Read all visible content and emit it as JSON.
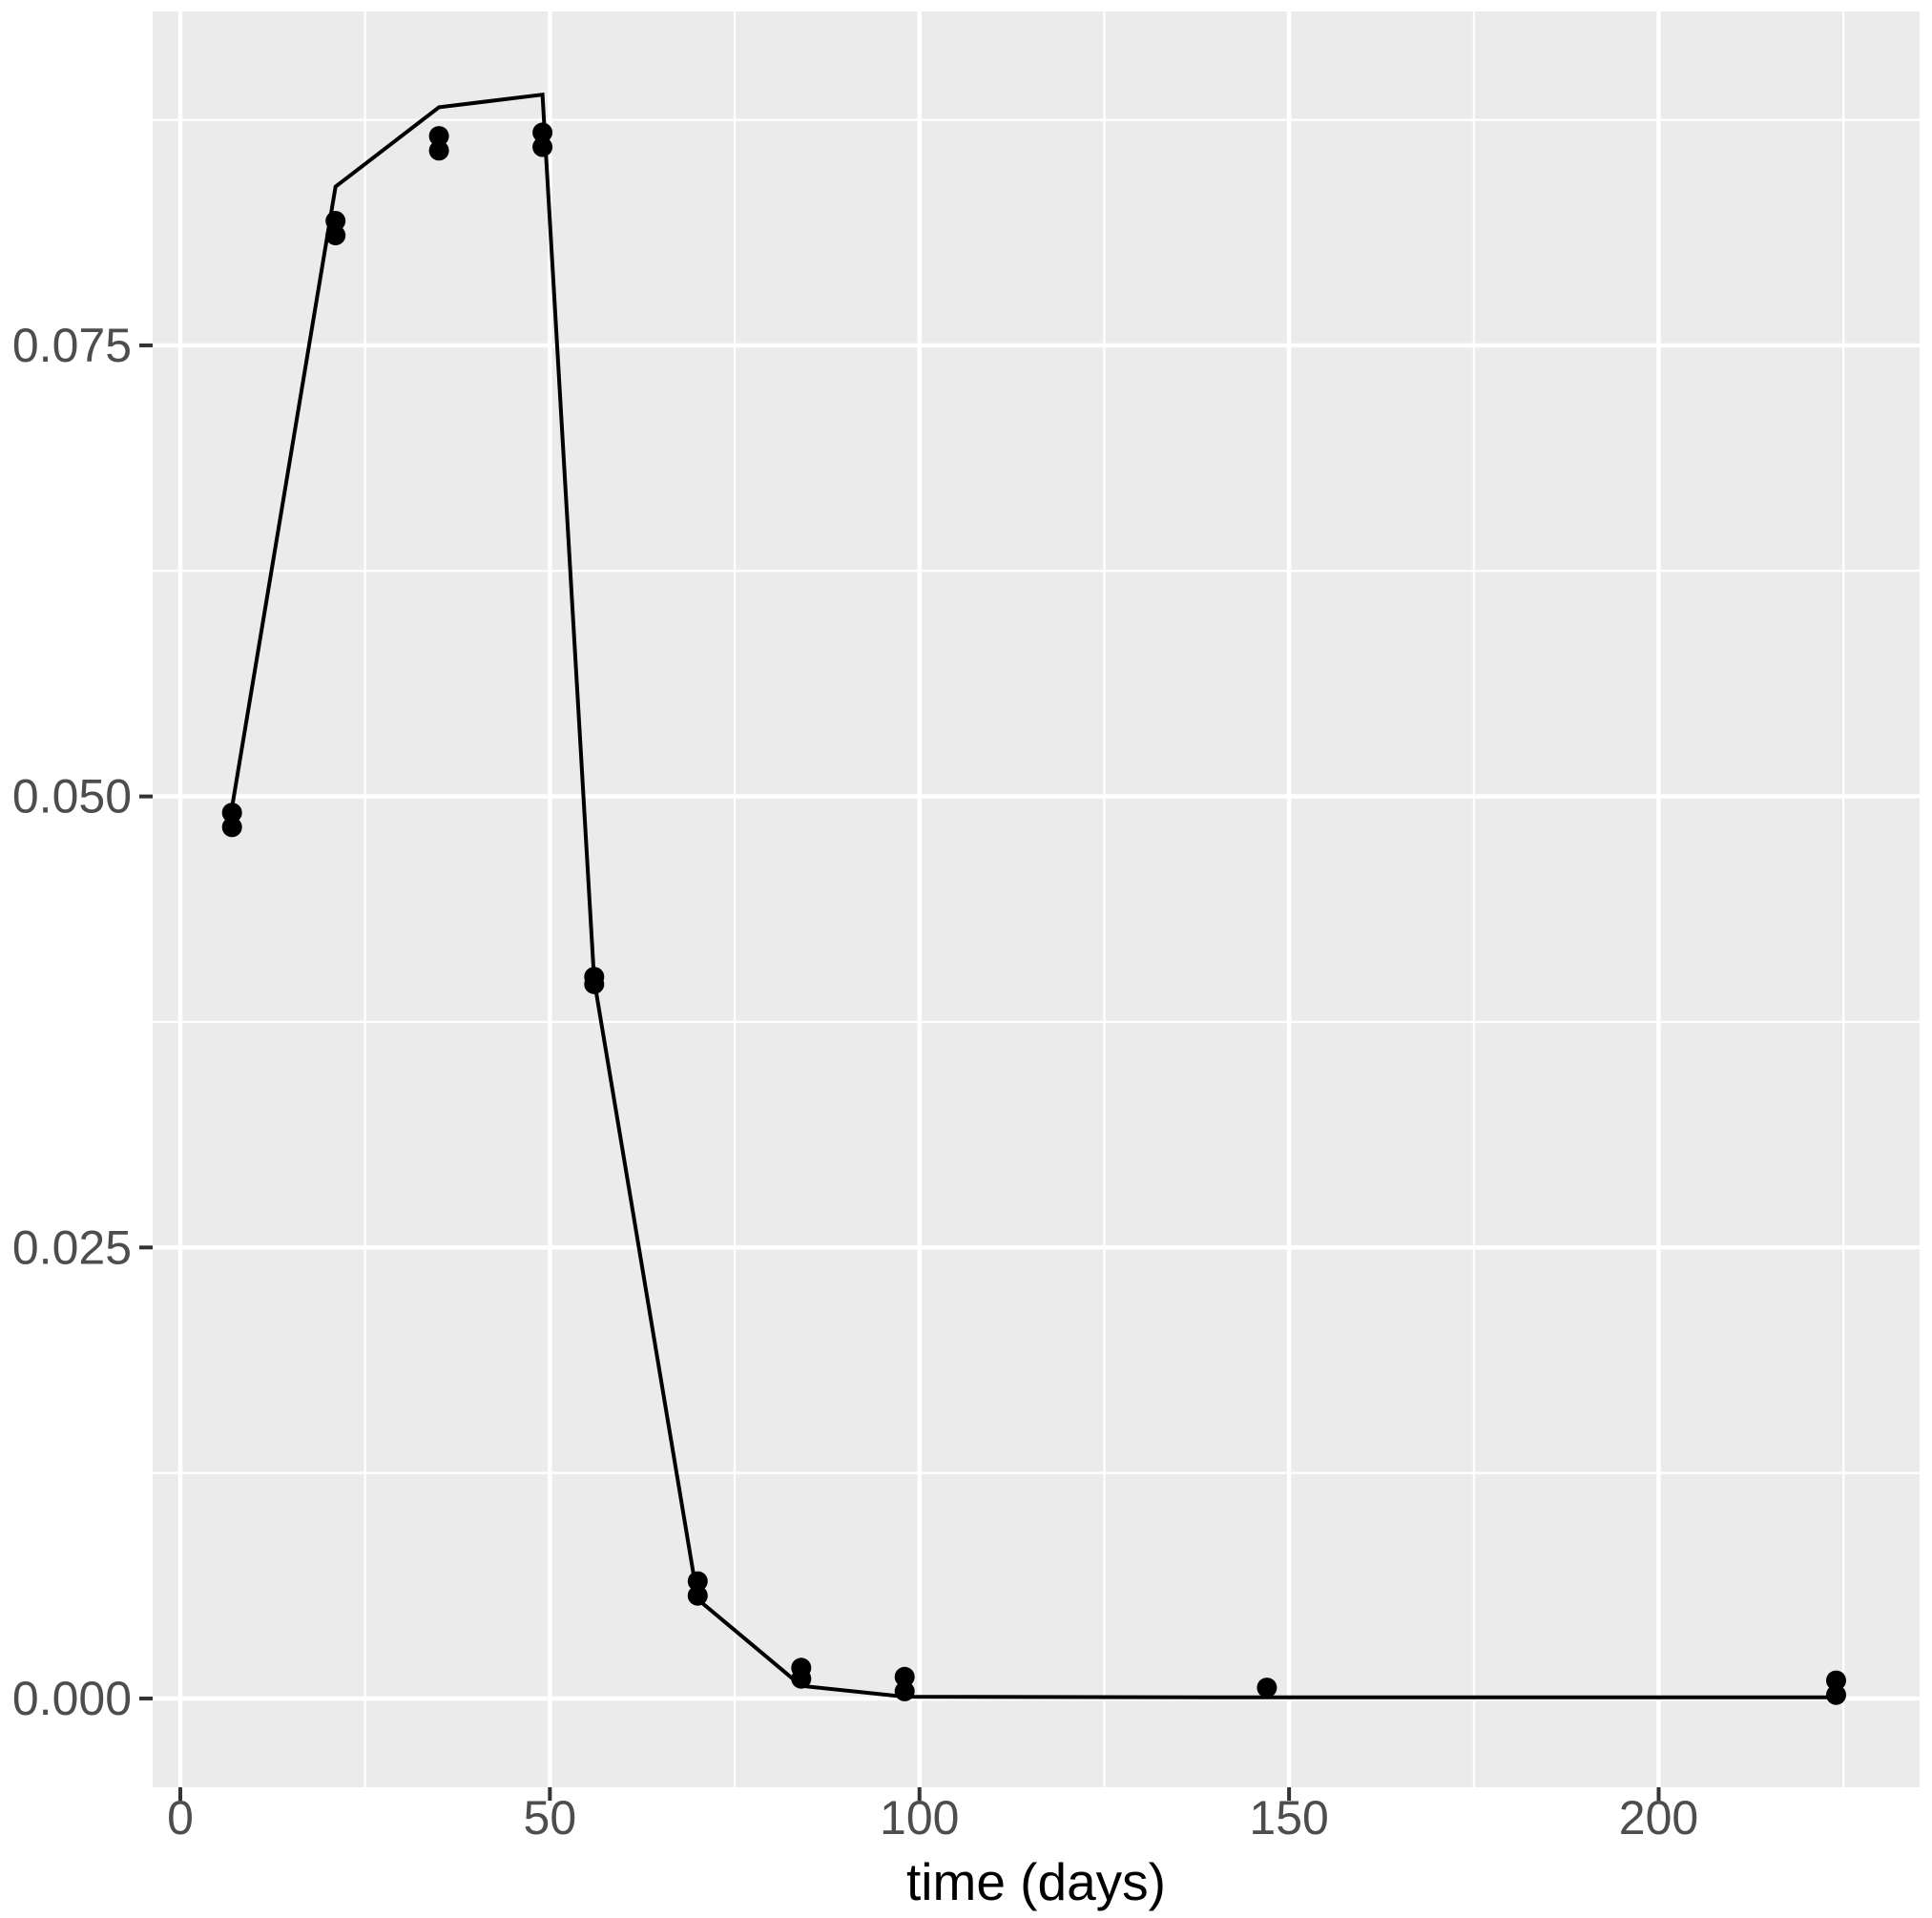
{
  "figure": {
    "xlabel": "time (days)",
    "ylabel": "",
    "title": ""
  },
  "colors": {
    "page_bg": "#FFFFFF",
    "panel_bg": "#EBEBEB",
    "grid_major": "#FFFFFF",
    "grid_minor": "#FFFFFF",
    "line": "#000000",
    "point": "#000000",
    "tick_mark": "#333333",
    "tick_label": "#4D4D4D",
    "axis_title": "#000000"
  },
  "chart_data": {
    "type": "scatter",
    "subtype": "points-with-fitted-line",
    "title": "",
    "xlabel": "time (days)",
    "ylabel": "",
    "legend_position": "none",
    "grid": "major-and-minor",
    "xlim": [
      -3.74,
      235.3
    ],
    "ylim": [
      -0.00492,
      0.09351
    ],
    "x_ticks": [
      {
        "value": 0,
        "label": "0"
      },
      {
        "value": 50,
        "label": "50"
      },
      {
        "value": 100,
        "label": "100"
      },
      {
        "value": 150,
        "label": "150"
      },
      {
        "value": 200,
        "label": "200"
      }
    ],
    "y_ticks": [
      {
        "value": 0.0,
        "label": "0.000"
      },
      {
        "value": 0.025,
        "label": "0.025"
      },
      {
        "value": 0.05,
        "label": "0.050"
      },
      {
        "value": 0.075,
        "label": "0.075"
      }
    ],
    "x_minor_ticks": [
      25,
      75,
      125,
      175,
      225
    ],
    "y_minor_ticks": [
      0.0125,
      0.0375,
      0.0625,
      0.0875
    ],
    "series": [
      {
        "name": "observed-points",
        "type": "scatter",
        "points": [
          {
            "x": 7,
            "y": 0.0491
          },
          {
            "x": 7,
            "y": 0.0483
          },
          {
            "x": 21,
            "y": 0.0819
          },
          {
            "x": 21,
            "y": 0.0811
          },
          {
            "x": 35,
            "y": 0.0866
          },
          {
            "x": 35,
            "y": 0.0858
          },
          {
            "x": 49,
            "y": 0.0868
          },
          {
            "x": 49,
            "y": 0.086
          },
          {
            "x": 56,
            "y": 0.04
          },
          {
            "x": 56,
            "y": 0.0396
          },
          {
            "x": 70,
            "y": 0.0065
          },
          {
            "x": 70,
            "y": 0.0057
          },
          {
            "x": 84,
            "y": 0.0017
          },
          {
            "x": 84,
            "y": 0.0011
          },
          {
            "x": 98,
            "y": 0.0012
          },
          {
            "x": 98,
            "y": 0.0004
          },
          {
            "x": 147,
            "y": 0.0006
          },
          {
            "x": 224,
            "y": 0.001
          },
          {
            "x": 224,
            "y": 0.0002
          }
        ]
      },
      {
        "name": "fitted-line",
        "type": "line",
        "points": [
          {
            "x": 7,
            "y": 0.0494
          },
          {
            "x": 21,
            "y": 0.0838
          },
          {
            "x": 35,
            "y": 0.0882
          },
          {
            "x": 49,
            "y": 0.0889
          },
          {
            "x": 56,
            "y": 0.0398
          },
          {
            "x": 70,
            "y": 0.0055
          },
          {
            "x": 84,
            "y": 0.0007
          },
          {
            "x": 98,
            "y": 0.0001
          },
          {
            "x": 147,
            "y": 6e-05
          },
          {
            "x": 224,
            "y": 6e-05
          }
        ]
      }
    ]
  }
}
